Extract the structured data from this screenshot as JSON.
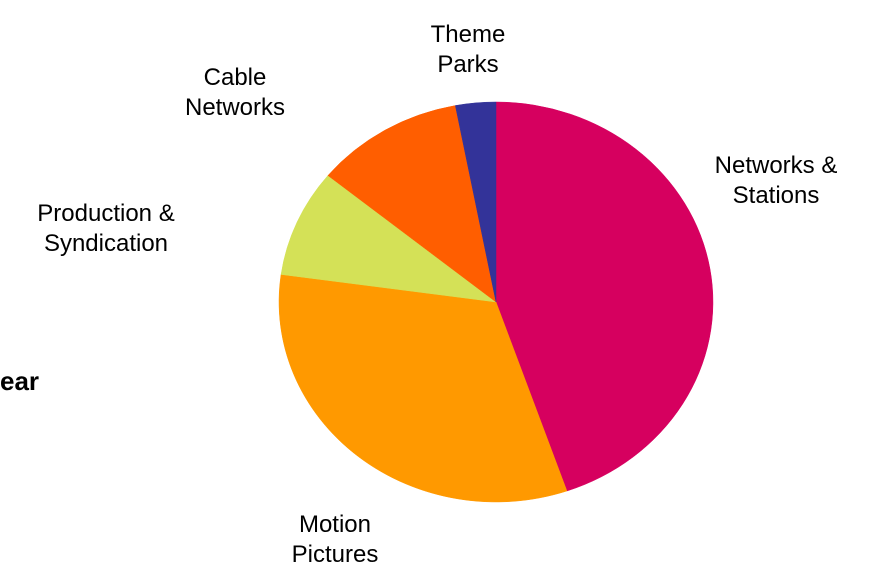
{
  "fragment_text": "ear",
  "chart_data": {
    "type": "pie",
    "title": "",
    "start_angle_deg": 0,
    "direction": "clockwise",
    "slices": [
      {
        "label": [
          "Networks &",
          "Stations"
        ],
        "value": 44.7,
        "color": "#D6005F"
      },
      {
        "label": [
          "Motion",
          "Pictures"
        ],
        "value": 32.5,
        "color": "#FF9900"
      },
      {
        "label": [
          "Production &",
          "Syndication"
        ],
        "value": 8.7,
        "color": "#D4E157"
      },
      {
        "label": [
          "Cable",
          "Networks"
        ],
        "value": 11.1,
        "color": "#FF5E00"
      },
      {
        "label": [
          "Theme",
          "Parks"
        ],
        "value": 3.0,
        "color": "#333399"
      }
    ],
    "legend": "none",
    "labels": "outside"
  }
}
